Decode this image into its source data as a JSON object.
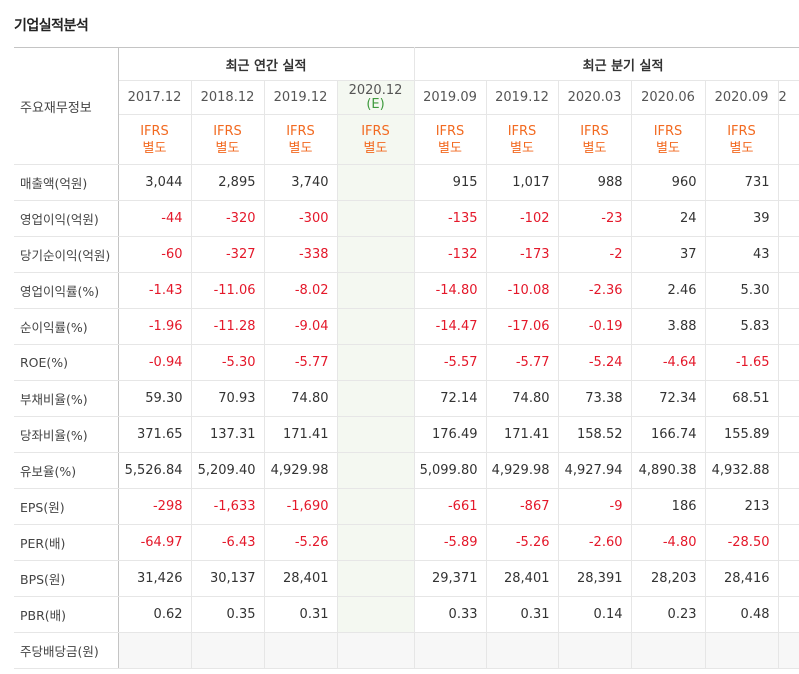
{
  "header": {
    "title": "기업실적분석"
  },
  "table": {
    "corner": "주요재무정보",
    "groups": [
      {
        "label": "최근 연간 실적",
        "columns": [
          {
            "period": "2017.12",
            "basis": [
              "IFRS",
              "별도"
            ]
          },
          {
            "period": "2018.12",
            "basis": [
              "IFRS",
              "별도"
            ]
          },
          {
            "period": "2019.12",
            "basis": [
              "IFRS",
              "별도"
            ]
          },
          {
            "period": "2020.12",
            "estimate": "(E)",
            "basis": [
              "IFRS",
              "별도"
            ]
          }
        ]
      },
      {
        "label": "최근 분기 실적",
        "columns": [
          {
            "period": "2019.09",
            "basis": [
              "IFRS",
              "별도"
            ]
          },
          {
            "period": "2019.12",
            "basis": [
              "IFRS",
              "별도"
            ]
          },
          {
            "period": "2020.03",
            "basis": [
              "IFRS",
              "별도"
            ]
          },
          {
            "period": "2020.06",
            "basis": [
              "IFRS",
              "별도"
            ]
          },
          {
            "period": "2020.09",
            "basis": [
              "IFRS",
              "별도"
            ]
          },
          {
            "period": "2"
          }
        ]
      }
    ],
    "rows": [
      {
        "label": "매출액(억원)",
        "values": [
          "3,044",
          "2,895",
          "3,740",
          null,
          "915",
          "1,017",
          "988",
          "960",
          "731",
          null
        ]
      },
      {
        "label": "영업이익(억원)",
        "values": [
          "-44",
          "-320",
          "-300",
          null,
          "-135",
          "-102",
          "-23",
          "24",
          "39",
          null
        ]
      },
      {
        "label": "당기순이익(억원)",
        "values": [
          "-60",
          "-327",
          "-338",
          null,
          "-132",
          "-173",
          "-2",
          "37",
          "43",
          null
        ]
      },
      {
        "label": "영업이익률(%)",
        "values": [
          "-1.43",
          "-11.06",
          "-8.02",
          null,
          "-14.80",
          "-10.08",
          "-2.36",
          "2.46",
          "5.30",
          null
        ]
      },
      {
        "label": "순이익률(%)",
        "values": [
          "-1.96",
          "-11.28",
          "-9.04",
          null,
          "-14.47",
          "-17.06",
          "-0.19",
          "3.88",
          "5.83",
          null
        ]
      },
      {
        "label": "ROE(%)",
        "values": [
          "-0.94",
          "-5.30",
          "-5.77",
          null,
          "-5.57",
          "-5.77",
          "-5.24",
          "-4.64",
          "-1.65",
          null
        ]
      },
      {
        "label": "부채비율(%)",
        "values": [
          "59.30",
          "70.93",
          "74.80",
          null,
          "72.14",
          "74.80",
          "73.38",
          "72.34",
          "68.51",
          null
        ]
      },
      {
        "label": "당좌비율(%)",
        "values": [
          "371.65",
          "137.31",
          "171.41",
          null,
          "176.49",
          "171.41",
          "158.52",
          "166.74",
          "155.89",
          null
        ]
      },
      {
        "label": "유보율(%)",
        "values": [
          "5,526.84",
          "5,209.40",
          "4,929.98",
          null,
          "5,099.80",
          "4,929.98",
          "4,927.94",
          "4,890.38",
          "4,932.88",
          null
        ]
      },
      {
        "label": "EPS(원)",
        "values": [
          "-298",
          "-1,633",
          "-1,690",
          null,
          "-661",
          "-867",
          "-9",
          "186",
          "213",
          null
        ]
      },
      {
        "label": "PER(배)",
        "values": [
          "-64.97",
          "-6.43",
          "-5.26",
          null,
          "-5.89",
          "-5.26",
          "-2.60",
          "-4.80",
          "-28.50",
          null
        ]
      },
      {
        "label": "BPS(원)",
        "values": [
          "31,426",
          "30,137",
          "28,401",
          null,
          "29,371",
          "28,401",
          "28,391",
          "28,203",
          "28,416",
          null
        ]
      },
      {
        "label": "PBR(배)",
        "values": [
          "0.62",
          "0.35",
          "0.31",
          null,
          "0.33",
          "0.31",
          "0.14",
          "0.23",
          "0.48",
          null
        ]
      },
      {
        "label": "주당배당금(원)",
        "values": [
          null,
          null,
          null,
          null,
          null,
          null,
          null,
          null,
          null,
          null
        ]
      }
    ]
  }
}
